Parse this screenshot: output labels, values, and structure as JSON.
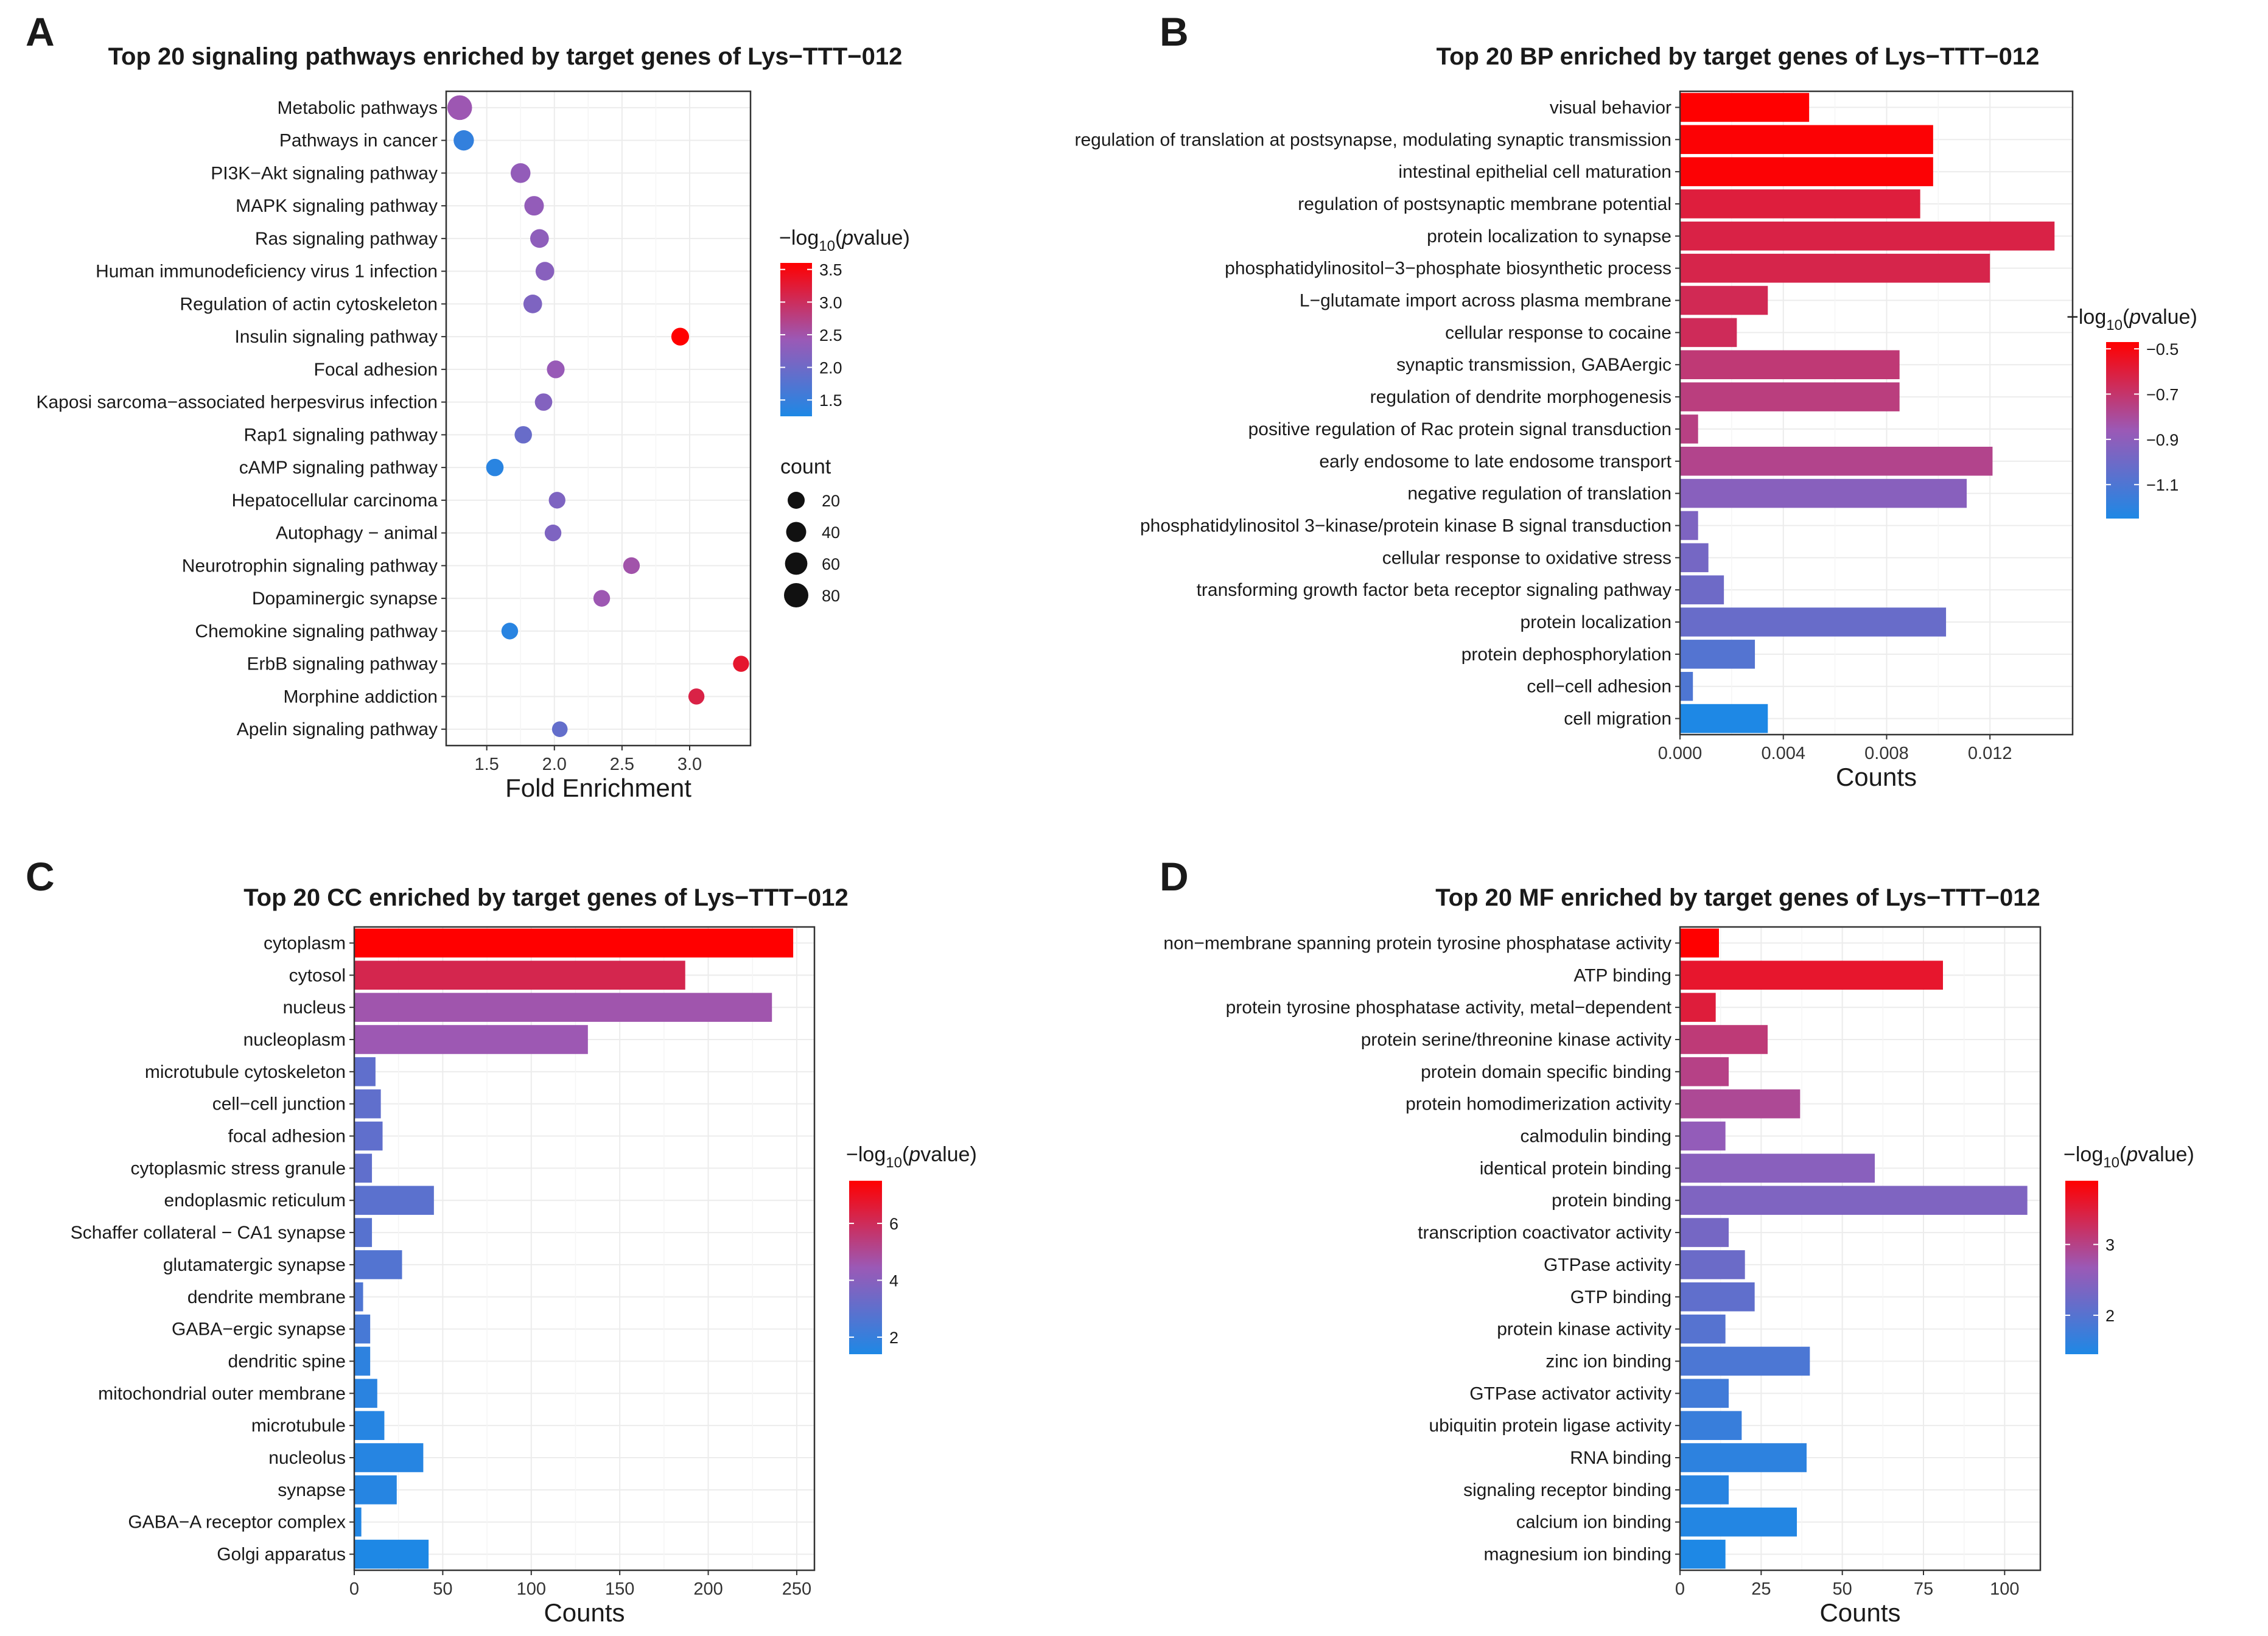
{
  "colors": {
    "low": "#1e88e5",
    "mid": "#9b59b6",
    "high": "#ff0000",
    "highlight": "#ff1a1a"
  },
  "chart_data": [
    {
      "panel": "A",
      "type": "scatter",
      "title": "Top 20 signaling pathways enriched by target genes of Lys−TTT−012",
      "xlabel": "Fold Enrichment",
      "xlim": [
        1.2,
        3.45
      ],
      "xticks": [
        "1.5",
        "2.0",
        "2.5",
        "3.0"
      ],
      "xtick_values": [
        1.5,
        2.0,
        2.5,
        3.0
      ],
      "legend": {
        "color_title_pre": "−log",
        "color_title_sub": "10",
        "color_title_paren": "(",
        "color_title_italic": "p",
        "color_title_post": "value)",
        "color_range": [
          1.25,
          3.6
        ],
        "color_ticks": [
          "3.5",
          "3.0",
          "2.5",
          "2.0",
          "1.5"
        ],
        "color_tick_values": [
          3.5,
          3.0,
          2.5,
          2.0,
          1.5
        ],
        "size_title": "count",
        "size_labels": [
          "20",
          "40",
          "60",
          "80"
        ],
        "size_values": [
          20,
          40,
          60,
          80
        ]
      },
      "categories": [
        "Metabolic pathways",
        "Pathways in cancer",
        "PI3K−Akt signaling pathway",
        "MAPK signaling pathway",
        "Ras signaling pathway",
        "Human immunodeficiency virus 1 infection",
        "Regulation of actin cytoskeleton",
        "Insulin signaling pathway",
        "Focal adhesion",
        "Kaposi sarcoma−associated herpesvirus infection",
        "Rap1 signaling pathway",
        "cAMP signaling pathway",
        "Hepatocellular carcinoma",
        "Autophagy − animal",
        "Neurotrophin signaling pathway",
        "Dopaminergic synapse",
        "Chemokine signaling pathway",
        "ErbB signaling pathway",
        "Morphine addiction",
        "Apelin signaling pathway"
      ],
      "highlight": [
        0,
        2
      ],
      "x": [
        1.3,
        1.33,
        1.75,
        1.85,
        1.89,
        1.93,
        1.84,
        2.93,
        2.01,
        1.92,
        1.77,
        1.56,
        2.02,
        1.99,
        2.57,
        2.35,
        1.67,
        3.38,
        3.05,
        2.04
      ],
      "count": [
        84,
        42,
        38,
        36,
        30,
        30,
        30,
        24,
        24,
        22,
        22,
        22,
        18,
        18,
        18,
        18,
        18,
        15,
        15,
        13
      ],
      "color": [
        2.45,
        1.45,
        2.35,
        2.35,
        2.3,
        2.25,
        2.15,
        3.6,
        2.4,
        2.2,
        1.95,
        1.35,
        2.15,
        2.15,
        2.5,
        2.45,
        1.35,
        3.3,
        3.15,
        1.9
      ]
    },
    {
      "panel": "B",
      "type": "bar",
      "title": "Top 20 BP enriched by target genes of Lys−TTT−012",
      "xlabel": "Counts",
      "xlim": [
        0,
        0.0152
      ],
      "xticks": [
        "0.000",
        "0.004",
        "0.008",
        "0.012"
      ],
      "xtick_values": [
        0.0,
        0.004,
        0.008,
        0.012
      ],
      "legend": {
        "color_title_pre": "−log",
        "color_title_sub": "10",
        "color_title_paren": "(",
        "color_title_italic": "p",
        "color_title_post": "value)",
        "color_range": [
          -1.25,
          -0.47
        ],
        "color_ticks": [
          "−0.5",
          "−0.7",
          "−0.9",
          "−1.1"
        ],
        "color_tick_values": [
          -0.5,
          -0.7,
          -0.9,
          -1.1
        ]
      },
      "categories": [
        "visual behavior",
        "regulation of translation at postsynapse, modulating synaptic transmission",
        "intestinal epithelial cell maturation",
        "regulation of postsynaptic membrane potential",
        "protein localization to synapse",
        "phosphatidylinositol−3−phosphate biosynthetic process",
        "L−glutamate import across plasma membrane",
        "cellular response to cocaine",
        "synaptic transmission, GABAergic",
        "regulation of dendrite morphogenesis",
        "positive regulation of Rac protein signal transduction",
        "early endosome to late endosome transport",
        "negative regulation of translation",
        "phosphatidylinositol 3−kinase/protein kinase B signal transduction",
        "cellular response to oxidative stress",
        "transforming growth factor beta receptor signaling pathway",
        "protein localization",
        "protein dephosphorylation",
        "cell−cell adhesion",
        "cell migration"
      ],
      "highlight": [],
      "values": [
        0.005,
        0.0098,
        0.0098,
        0.0093,
        0.0145,
        0.012,
        0.0034,
        0.0022,
        0.0085,
        0.0085,
        0.0007,
        0.0121,
        0.0111,
        0.0007,
        0.0011,
        0.0017,
        0.0103,
        0.0029,
        0.0005,
        0.0034
      ],
      "color": [
        -0.47,
        -0.48,
        -0.48,
        -0.6,
        -0.62,
        -0.63,
        -0.65,
        -0.66,
        -0.72,
        -0.74,
        -0.75,
        -0.77,
        -0.92,
        -0.95,
        -0.98,
        -1.0,
        -1.02,
        -1.08,
        -1.1,
        -1.25
      ]
    },
    {
      "panel": "C",
      "type": "bar",
      "title": "Top 20 CC enriched by target genes of Lys−TTT−012",
      "xlabel": "Counts",
      "xlim": [
        0,
        260
      ],
      "xticks": [
        "0",
        "50",
        "100",
        "150",
        "200",
        "250"
      ],
      "xtick_values": [
        0,
        50,
        100,
        150,
        200,
        250
      ],
      "legend": {
        "color_title_pre": "−log",
        "color_title_sub": "10",
        "color_title_paren": "(",
        "color_title_italic": "p",
        "color_title_post": "value)",
        "color_range": [
          1.4,
          7.5
        ],
        "color_ticks": [
          "6",
          "4",
          "2"
        ],
        "color_tick_values": [
          6,
          4,
          2
        ]
      },
      "categories": [
        "cytoplasm",
        "cytosol",
        "nucleus",
        "nucleoplasm",
        "microtubule cytoskeleton",
        "cell−cell junction",
        "focal adhesion",
        "cytoplasmic stress granule",
        "endoplasmic reticulum",
        "Schaffer collateral − CA1 synapse",
        "glutamatergic synapse",
        "dendrite membrane",
        "GABA−ergic synapse",
        "dendritic spine",
        "mitochondrial outer membrane",
        "microtubule",
        "nucleolus",
        "synapse",
        "GABA−A receptor complex",
        "Golgi apparatus"
      ],
      "highlight": [],
      "values": [
        248,
        187,
        236,
        132,
        12,
        15,
        16,
        10,
        45,
        10,
        27,
        5,
        9,
        9,
        13,
        17,
        39,
        24,
        4,
        42
      ],
      "color": [
        7.5,
        6.2,
        4.6,
        4.5,
        3.0,
        3.0,
        3.0,
        3.0,
        2.9,
        2.8,
        2.7,
        2.6,
        2.4,
        1.8,
        1.7,
        1.6,
        1.6,
        1.6,
        1.5,
        1.4
      ]
    },
    {
      "panel": "D",
      "type": "bar",
      "title": "Top 20 MF enriched by target genes of Lys−TTT−012",
      "xlabel": "Counts",
      "xlim": [
        0,
        111
      ],
      "xticks": [
        "0",
        "25",
        "50",
        "75",
        "100"
      ],
      "xtick_values": [
        0,
        25,
        50,
        75,
        100
      ],
      "legend": {
        "color_title_pre": "−log",
        "color_title_sub": "10",
        "color_title_paren": "(",
        "color_title_italic": "p",
        "color_title_post": "value)",
        "color_range": [
          1.45,
          3.9
        ],
        "color_ticks": [
          "3",
          "2"
        ],
        "color_tick_values": [
          3,
          2
        ]
      },
      "categories": [
        "non−membrane spanning protein tyrosine phosphatase activity",
        "ATP binding",
        "protein tyrosine phosphatase activity, metal−dependent",
        "protein serine/threonine kinase activity",
        "protein domain specific binding",
        "protein homodimerization activity",
        "calmodulin binding",
        "identical protein binding",
        "protein binding",
        "transcription coactivator activity",
        "GTPase activity",
        "GTP binding",
        "protein kinase activity",
        "zinc ion binding",
        "GTPase activator activity",
        "ubiquitin protein ligase activity",
        "RNA binding",
        "signaling receptor binding",
        "calcium ion binding",
        "magnesium ion binding"
      ],
      "highlight": [
        1,
        8
      ],
      "values": [
        12,
        81,
        11,
        27,
        15,
        37,
        14,
        60,
        107,
        15,
        20,
        23,
        14,
        40,
        15,
        19,
        39,
        15,
        36,
        14
      ],
      "color": [
        3.9,
        3.6,
        3.5,
        3.1,
        3.0,
        2.9,
        2.6,
        2.5,
        2.4,
        2.3,
        2.2,
        2.1,
        2.0,
        1.9,
        1.8,
        1.7,
        1.6,
        1.55,
        1.5,
        1.45
      ]
    }
  ]
}
